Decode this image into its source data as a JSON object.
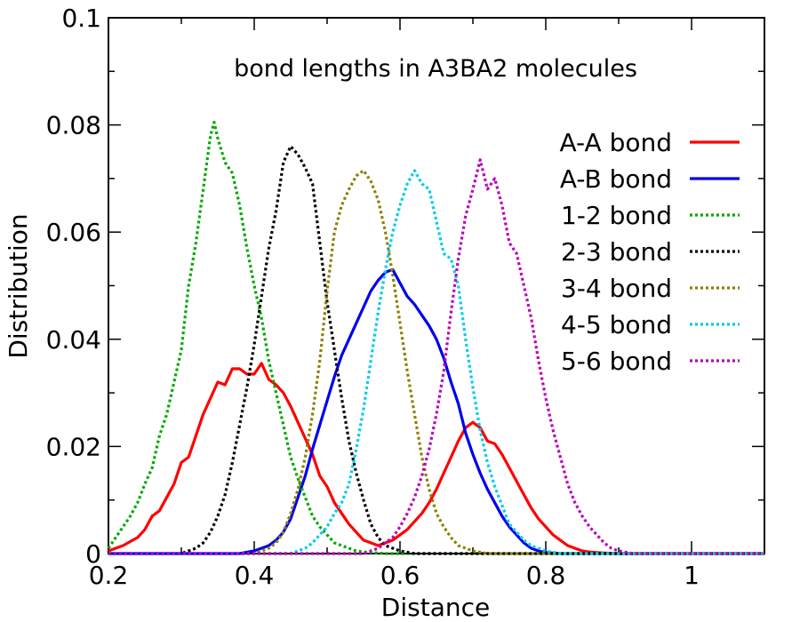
{
  "chart_data": {
    "type": "line",
    "title": "bond lengths in A3BA2 molecules",
    "xlabel": "Distance",
    "ylabel": "Distribution",
    "xlim": [
      0.2,
      1.1
    ],
    "ylim": [
      0,
      0.1
    ],
    "xticks": [
      0.2,
      0.4,
      0.6,
      0.8,
      1.0
    ],
    "xtick_labels": [
      "0.2",
      "0.4",
      "0.6",
      "0.8",
      "1"
    ],
    "yticks": [
      0,
      0.02,
      0.04,
      0.06,
      0.08,
      0.1
    ],
    "ytick_labels": [
      "0",
      "0.02",
      "0.04",
      "0.06",
      "0.08",
      "0.1"
    ],
    "grid": false,
    "legend_position": "right",
    "series": [
      {
        "name": "A-A bond",
        "color": "#ff0000",
        "style": "solid",
        "x": [
          0.2,
          0.22,
          0.24,
          0.25,
          0.26,
          0.27,
          0.28,
          0.29,
          0.3,
          0.31,
          0.32,
          0.33,
          0.34,
          0.35,
          0.36,
          0.37,
          0.38,
          0.39,
          0.4,
          0.41,
          0.42,
          0.43,
          0.44,
          0.45,
          0.46,
          0.47,
          0.48,
          0.49,
          0.5,
          0.51,
          0.52,
          0.53,
          0.54,
          0.55,
          0.56,
          0.57,
          0.58,
          0.59,
          0.6,
          0.61,
          0.62,
          0.63,
          0.64,
          0.65,
          0.66,
          0.67,
          0.68,
          0.69,
          0.7,
          0.71,
          0.72,
          0.73,
          0.74,
          0.75,
          0.76,
          0.77,
          0.78,
          0.79,
          0.8,
          0.81,
          0.82,
          0.83,
          0.84,
          0.85,
          0.86,
          0.87,
          0.88,
          0.9,
          1.1
        ],
        "y": [
          0.0005,
          0.0015,
          0.003,
          0.0045,
          0.007,
          0.008,
          0.0105,
          0.013,
          0.017,
          0.018,
          0.022,
          0.026,
          0.029,
          0.032,
          0.0315,
          0.0345,
          0.0345,
          0.0335,
          0.0335,
          0.0355,
          0.0325,
          0.0315,
          0.03,
          0.0275,
          0.0245,
          0.0215,
          0.0185,
          0.0145,
          0.0125,
          0.0095,
          0.0075,
          0.0055,
          0.004,
          0.0025,
          0.002,
          0.0015,
          0.002,
          0.0025,
          0.0035,
          0.0045,
          0.006,
          0.0075,
          0.0095,
          0.012,
          0.015,
          0.018,
          0.021,
          0.0235,
          0.0245,
          0.0235,
          0.021,
          0.0205,
          0.0185,
          0.016,
          0.0135,
          0.011,
          0.0085,
          0.0065,
          0.005,
          0.0035,
          0.0025,
          0.0015,
          0.001,
          0.0005,
          0.0003,
          0.0002,
          0.0001,
          0.0,
          0.0
        ]
      },
      {
        "name": "A-B bond",
        "color": "#0000ee",
        "style": "solid",
        "x": [
          0.2,
          0.38,
          0.4,
          0.41,
          0.42,
          0.43,
          0.44,
          0.45,
          0.46,
          0.47,
          0.48,
          0.49,
          0.5,
          0.51,
          0.52,
          0.53,
          0.54,
          0.55,
          0.56,
          0.57,
          0.58,
          0.59,
          0.6,
          0.61,
          0.62,
          0.63,
          0.64,
          0.65,
          0.66,
          0.67,
          0.68,
          0.69,
          0.7,
          0.71,
          0.72,
          0.73,
          0.74,
          0.75,
          0.76,
          0.77,
          0.78,
          0.79,
          0.8,
          0.82,
          1.1
        ],
        "y": [
          0.0,
          0.0,
          0.0005,
          0.001,
          0.0015,
          0.0025,
          0.004,
          0.0065,
          0.0105,
          0.0145,
          0.0195,
          0.024,
          0.0285,
          0.033,
          0.037,
          0.04,
          0.043,
          0.046,
          0.049,
          0.051,
          0.0525,
          0.053,
          0.0505,
          0.048,
          0.0465,
          0.0445,
          0.0425,
          0.04,
          0.0365,
          0.032,
          0.028,
          0.0225,
          0.0185,
          0.015,
          0.012,
          0.0095,
          0.007,
          0.005,
          0.0035,
          0.002,
          0.001,
          0.0005,
          0.0002,
          0.0,
          0.0
        ]
      },
      {
        "name": "1-2 bond",
        "color": "#00aa00",
        "style": "dotted",
        "x": [
          0.2,
          0.21,
          0.22,
          0.23,
          0.24,
          0.25,
          0.26,
          0.27,
          0.28,
          0.29,
          0.3,
          0.31,
          0.32,
          0.33,
          0.34,
          0.345,
          0.35,
          0.36,
          0.37,
          0.38,
          0.39,
          0.4,
          0.41,
          0.42,
          0.43,
          0.44,
          0.45,
          0.46,
          0.47,
          0.48,
          0.49,
          0.5,
          0.51,
          0.52,
          0.53,
          0.54,
          0.55,
          0.56,
          0.58,
          1.1
        ],
        "y": [
          0.001,
          0.003,
          0.005,
          0.007,
          0.0095,
          0.013,
          0.016,
          0.022,
          0.026,
          0.032,
          0.038,
          0.05,
          0.058,
          0.068,
          0.078,
          0.0805,
          0.0775,
          0.073,
          0.071,
          0.065,
          0.057,
          0.05,
          0.044,
          0.036,
          0.03,
          0.024,
          0.018,
          0.014,
          0.0105,
          0.007,
          0.005,
          0.0035,
          0.002,
          0.0015,
          0.001,
          0.0005,
          0.0003,
          0.0002,
          0.0,
          0.0
        ]
      },
      {
        "name": "2-3 bond",
        "color": "#000000",
        "style": "dotted",
        "x": [
          0.2,
          0.3,
          0.32,
          0.33,
          0.34,
          0.35,
          0.36,
          0.37,
          0.38,
          0.39,
          0.4,
          0.41,
          0.42,
          0.43,
          0.44,
          0.45,
          0.46,
          0.47,
          0.48,
          0.49,
          0.5,
          0.51,
          0.52,
          0.53,
          0.54,
          0.55,
          0.56,
          0.57,
          0.58,
          0.59,
          0.6,
          0.62,
          1.1
        ],
        "y": [
          0.0,
          0.0,
          0.001,
          0.002,
          0.004,
          0.007,
          0.011,
          0.017,
          0.024,
          0.031,
          0.039,
          0.048,
          0.057,
          0.064,
          0.073,
          0.076,
          0.0745,
          0.072,
          0.069,
          0.058,
          0.047,
          0.038,
          0.029,
          0.021,
          0.015,
          0.01,
          0.0055,
          0.003,
          0.0015,
          0.001,
          0.0005,
          0.0,
          0.0
        ]
      },
      {
        "name": "3-4 bond",
        "color": "#8c8000",
        "style": "dotted",
        "x": [
          0.2,
          0.4,
          0.42,
          0.43,
          0.44,
          0.45,
          0.46,
          0.47,
          0.48,
          0.49,
          0.5,
          0.51,
          0.52,
          0.53,
          0.54,
          0.55,
          0.56,
          0.57,
          0.58,
          0.59,
          0.6,
          0.61,
          0.62,
          0.63,
          0.64,
          0.65,
          0.66,
          0.67,
          0.68,
          0.69,
          0.7,
          0.72,
          1.1
        ],
        "y": [
          0.0,
          0.0,
          0.001,
          0.002,
          0.004,
          0.0075,
          0.012,
          0.018,
          0.026,
          0.036,
          0.049,
          0.06,
          0.065,
          0.068,
          0.0705,
          0.0715,
          0.0695,
          0.066,
          0.06,
          0.052,
          0.043,
          0.034,
          0.026,
          0.018,
          0.012,
          0.0075,
          0.005,
          0.003,
          0.0015,
          0.001,
          0.0005,
          0.0,
          0.0
        ]
      },
      {
        "name": "4-5 bond",
        "color": "#00ccee",
        "style": "dotted",
        "x": [
          0.2,
          0.45,
          0.47,
          0.48,
          0.49,
          0.5,
          0.51,
          0.52,
          0.53,
          0.54,
          0.55,
          0.56,
          0.57,
          0.58,
          0.59,
          0.6,
          0.61,
          0.62,
          0.63,
          0.64,
          0.65,
          0.66,
          0.67,
          0.68,
          0.69,
          0.7,
          0.71,
          0.72,
          0.73,
          0.74,
          0.75,
          0.76,
          0.77,
          0.78,
          0.79,
          0.8,
          0.82,
          1.1
        ],
        "y": [
          0.0,
          0.0,
          0.001,
          0.002,
          0.0035,
          0.005,
          0.0075,
          0.0095,
          0.013,
          0.0195,
          0.027,
          0.036,
          0.045,
          0.053,
          0.06,
          0.065,
          0.069,
          0.0715,
          0.069,
          0.068,
          0.062,
          0.056,
          0.055,
          0.05,
          0.04,
          0.031,
          0.023,
          0.017,
          0.0125,
          0.009,
          0.0055,
          0.004,
          0.0025,
          0.0015,
          0.001,
          0.0005,
          0.0,
          0.0
        ]
      },
      {
        "name": "5-6 bond",
        "color": "#bb00bb",
        "style": "dotted",
        "x": [
          0.2,
          0.55,
          0.57,
          0.58,
          0.59,
          0.6,
          0.61,
          0.62,
          0.63,
          0.64,
          0.65,
          0.66,
          0.67,
          0.68,
          0.69,
          0.7,
          0.71,
          0.72,
          0.73,
          0.74,
          0.75,
          0.76,
          0.77,
          0.78,
          0.79,
          0.8,
          0.81,
          0.82,
          0.83,
          0.84,
          0.85,
          0.86,
          0.87,
          0.88,
          0.89,
          0.9,
          0.92,
          1.1
        ],
        "y": [
          0.0,
          0.0,
          0.001,
          0.002,
          0.003,
          0.005,
          0.0075,
          0.0105,
          0.0145,
          0.0195,
          0.026,
          0.034,
          0.045,
          0.055,
          0.063,
          0.068,
          0.0735,
          0.068,
          0.07,
          0.065,
          0.058,
          0.056,
          0.05,
          0.044,
          0.036,
          0.029,
          0.023,
          0.018,
          0.013,
          0.0095,
          0.007,
          0.005,
          0.0035,
          0.002,
          0.001,
          0.0005,
          0.0,
          0.0
        ]
      }
    ]
  }
}
